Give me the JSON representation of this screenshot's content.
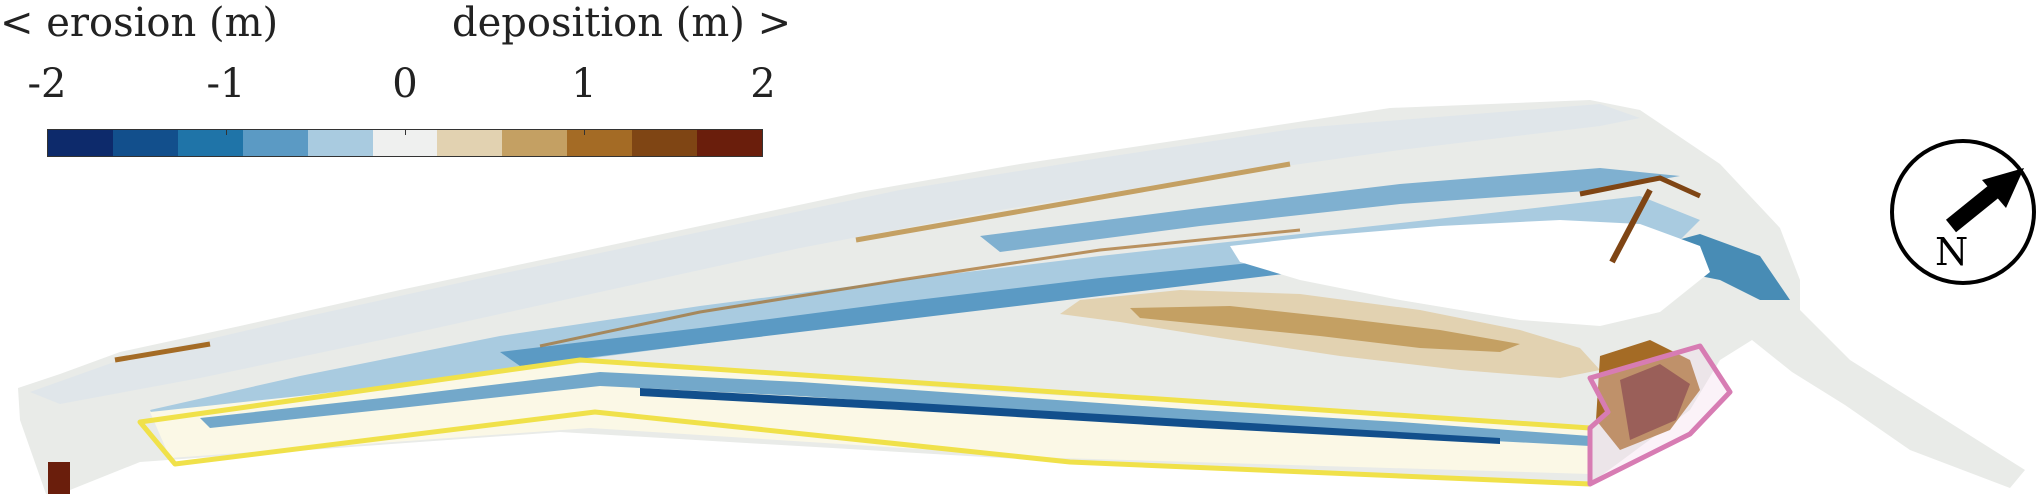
{
  "legend": {
    "erosion_label": "< erosion (m)",
    "deposition_label": "deposition (m) >",
    "ticks": [
      "-2",
      "-1",
      "0",
      "1",
      "2"
    ],
    "colorbar_colors": [
      "#0d2a6b",
      "#124f8c",
      "#1f74a8",
      "#5b9ac4",
      "#a9cbe0",
      "#eff0ef",
      "#e2d2b1",
      "#c4a063",
      "#a46b25",
      "#7f4514",
      "#6a1e0c"
    ]
  },
  "compass": {
    "label": "N"
  },
  "colors": {
    "outline_yellow": "#f0e14a",
    "outline_pink": "#d77cb3",
    "background": "#ffffff"
  }
}
